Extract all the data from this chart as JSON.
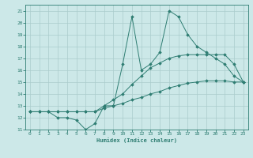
{
  "xlabel": "Humidex (Indice chaleur)",
  "bg_color": "#cce8e8",
  "line_color": "#2e7d72",
  "grid_color": "#aacccc",
  "xlim": [
    -0.5,
    23.5
  ],
  "ylim": [
    11,
    21.5
  ],
  "xticks": [
    0,
    1,
    2,
    3,
    4,
    5,
    6,
    7,
    8,
    9,
    10,
    11,
    12,
    13,
    14,
    15,
    16,
    17,
    18,
    19,
    20,
    21,
    22,
    23
  ],
  "yticks": [
    11,
    12,
    13,
    14,
    15,
    16,
    17,
    18,
    19,
    20,
    21
  ],
  "series1_x": [
    0,
    1,
    2,
    3,
    4,
    5,
    6,
    7,
    8,
    9,
    10,
    11,
    12,
    13,
    14,
    15,
    16,
    17,
    18,
    19,
    20,
    21,
    22,
    23
  ],
  "series1_y": [
    12.5,
    12.5,
    12.5,
    12.5,
    12.5,
    12.5,
    12.5,
    12.5,
    12.8,
    13.0,
    13.2,
    13.5,
    13.7,
    14.0,
    14.2,
    14.5,
    14.7,
    14.9,
    15.0,
    15.1,
    15.1,
    15.1,
    15.0,
    15.0
  ],
  "series2_x": [
    0,
    1,
    2,
    3,
    4,
    5,
    6,
    7,
    8,
    9,
    10,
    11,
    12,
    13,
    14,
    15,
    16,
    17,
    18,
    19,
    20,
    21,
    22,
    23
  ],
  "series2_y": [
    12.5,
    12.5,
    12.5,
    12.5,
    12.5,
    12.5,
    12.5,
    12.5,
    13.0,
    13.5,
    14.0,
    14.8,
    15.5,
    16.2,
    16.6,
    17.0,
    17.2,
    17.3,
    17.3,
    17.3,
    17.3,
    17.3,
    16.5,
    15.0
  ],
  "series3_x": [
    0,
    1,
    2,
    3,
    4,
    5,
    6,
    7,
    8,
    9,
    10,
    11,
    12,
    13,
    14,
    15,
    16,
    17,
    18,
    19,
    20,
    21,
    22,
    23
  ],
  "series3_y": [
    12.5,
    12.5,
    12.5,
    12.0,
    12.0,
    11.8,
    11.0,
    11.5,
    13.0,
    13.0,
    16.5,
    20.5,
    16.0,
    16.5,
    17.5,
    21.0,
    20.5,
    19.0,
    18.0,
    17.5,
    17.0,
    16.5,
    15.5,
    15.0
  ]
}
